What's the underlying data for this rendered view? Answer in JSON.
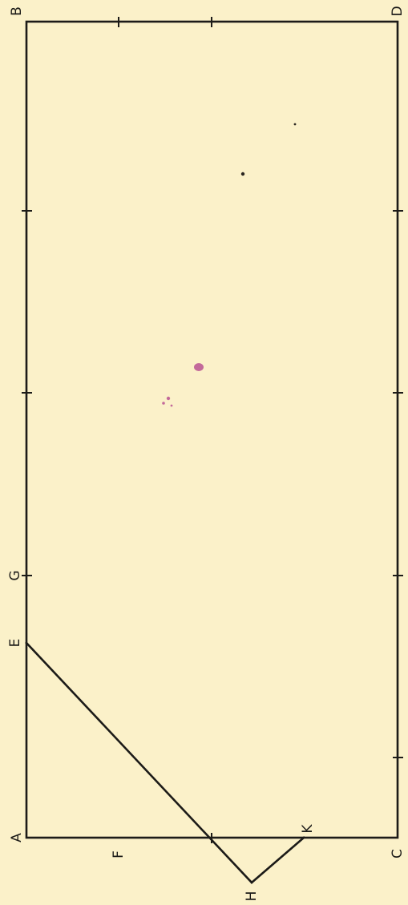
{
  "figure": {
    "labels": {
      "A": "A",
      "B": "B",
      "C": "C",
      "D": "D",
      "E": "E",
      "F": "F",
      "G": "G",
      "H": "H",
      "K": "K"
    }
  },
  "colors": {
    "paper": "#fbf1c9",
    "ink": "#1c1b18",
    "stain": "#c36a9a"
  }
}
